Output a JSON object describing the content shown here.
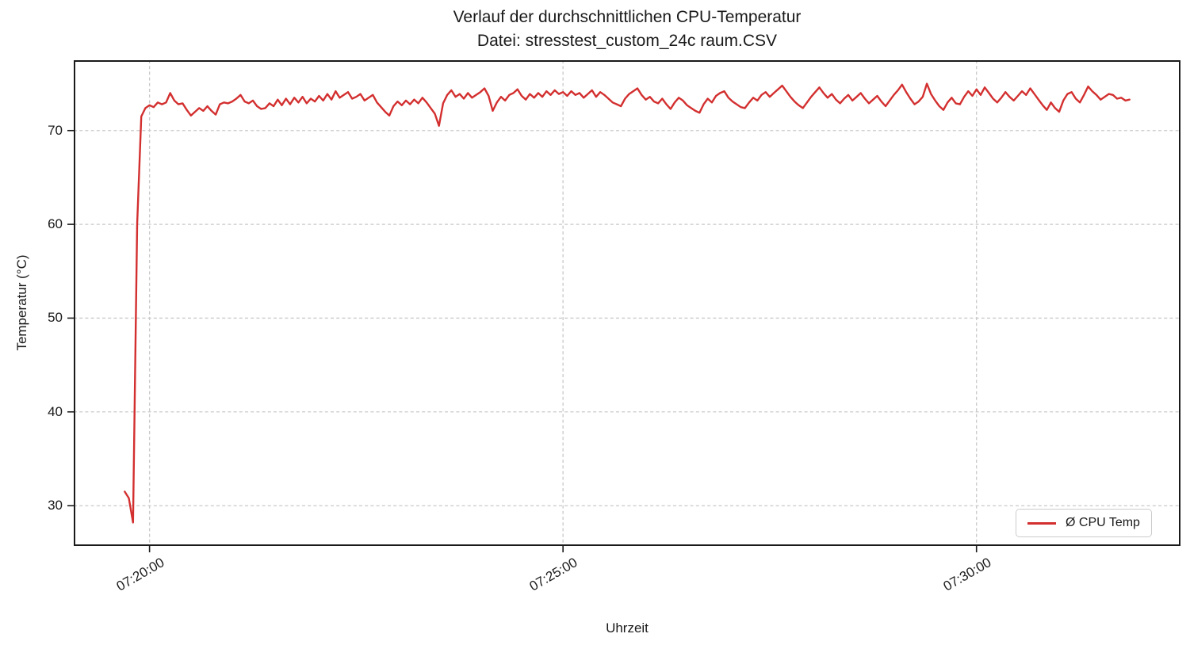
{
  "title": "Verlauf der durchschnittlichen CPU-Temperatur",
  "subtitle": "Datei: stresstest_custom_24c raum.CSV",
  "chart_data": {
    "type": "line",
    "title": "Verlauf der durchschnittlichen CPU-Temperatur",
    "subtitle": "Datei: stresstest_custom_24c raum.CSV",
    "xlabel": "Uhrzeit",
    "ylabel": "Temperatur (°C)",
    "grid": true,
    "grid_style": "dashed",
    "grid_color": "#c9c9c9",
    "spine_color": "#1a1a1a",
    "legend": {
      "position": "lower right",
      "entries": [
        {
          "label": "Ø CPU Temp",
          "color": "#d32f2f"
        }
      ]
    },
    "x_axis": {
      "tick_labels": [
        "07:20:00",
        "07:25:00",
        "07:30:00"
      ],
      "tick_seconds": [
        26400,
        26700,
        27000
      ],
      "xlim_seconds": [
        26345,
        27148
      ]
    },
    "y_axis": {
      "ticks": [
        30,
        40,
        50,
        60,
        70
      ],
      "ylim": [
        25.7,
        77.5
      ]
    },
    "series": [
      {
        "name": "Ø CPU Temp",
        "color": "#d32f2f",
        "line_width": 2.4,
        "start_time": "07:19:42",
        "start_seconds": 26382,
        "interval_seconds": 3,
        "values": [
          31.5,
          30.8,
          28.2,
          60.0,
          71.5,
          72.4,
          72.7,
          72.5,
          73.0,
          72.8,
          73.0,
          74.0,
          73.2,
          72.8,
          72.9,
          72.2,
          71.6,
          72.0,
          72.4,
          72.1,
          72.6,
          72.1,
          71.7,
          72.8,
          73.0,
          72.9,
          73.1,
          73.4,
          73.8,
          73.1,
          72.9,
          73.2,
          72.6,
          72.3,
          72.4,
          72.9,
          72.6,
          73.3,
          72.7,
          73.4,
          72.8,
          73.5,
          73.0,
          73.6,
          72.9,
          73.4,
          73.1,
          73.7,
          73.2,
          73.9,
          73.3,
          74.2,
          73.5,
          73.8,
          74.1,
          73.4,
          73.6,
          73.9,
          73.2,
          73.5,
          73.8,
          73.0,
          72.5,
          72.0,
          71.6,
          72.6,
          73.1,
          72.7,
          73.2,
          72.8,
          73.3,
          72.9,
          73.5,
          73.0,
          72.4,
          71.8,
          70.5,
          72.9,
          73.8,
          74.3,
          73.6,
          73.9,
          73.4,
          74.0,
          73.5,
          73.8,
          74.1,
          74.5,
          73.7,
          72.1,
          73.0,
          73.6,
          73.2,
          73.8,
          74.0,
          74.4,
          73.7,
          73.3,
          73.9,
          73.5,
          74.0,
          73.6,
          74.2,
          73.8,
          74.3,
          73.9,
          74.1,
          73.7,
          74.2,
          73.8,
          74.0,
          73.5,
          73.9,
          74.3,
          73.6,
          74.1,
          73.8,
          73.4,
          73.0,
          72.8,
          72.6,
          73.4,
          73.9,
          74.2,
          74.5,
          73.8,
          73.3,
          73.6,
          73.1,
          72.9,
          73.4,
          72.8,
          72.3,
          73.0,
          73.5,
          73.2,
          72.7,
          72.4,
          72.1,
          71.9,
          72.8,
          73.4,
          73.0,
          73.7,
          74.0,
          74.2,
          73.5,
          73.1,
          72.8,
          72.5,
          72.4,
          73.0,
          73.5,
          73.2,
          73.8,
          74.1,
          73.6,
          74.0,
          74.4,
          74.8,
          74.2,
          73.6,
          73.1,
          72.7,
          72.4,
          73.0,
          73.6,
          74.1,
          74.6,
          74.0,
          73.5,
          73.9,
          73.3,
          72.9,
          73.4,
          73.8,
          73.2,
          73.6,
          74.0,
          73.4,
          72.9,
          73.3,
          73.7,
          73.1,
          72.6,
          73.2,
          73.8,
          74.3,
          74.9,
          74.1,
          73.4,
          72.8,
          73.1,
          73.6,
          75.0,
          73.9,
          73.2,
          72.6,
          72.2,
          73.0,
          73.5,
          72.9,
          72.8,
          73.6,
          74.2,
          73.7,
          74.4,
          73.8,
          74.6,
          74.0,
          73.4,
          73.0,
          73.5,
          74.1,
          73.6,
          73.2,
          73.7,
          74.2,
          73.8,
          74.5,
          73.9,
          73.3,
          72.7,
          72.2,
          73.0,
          72.4,
          72.0,
          73.2,
          73.9,
          74.1,
          73.4,
          73.0,
          73.8,
          74.7,
          74.2,
          73.8,
          73.3,
          73.6,
          73.9,
          73.8,
          73.4,
          73.5,
          73.2,
          73.3
        ]
      }
    ]
  }
}
